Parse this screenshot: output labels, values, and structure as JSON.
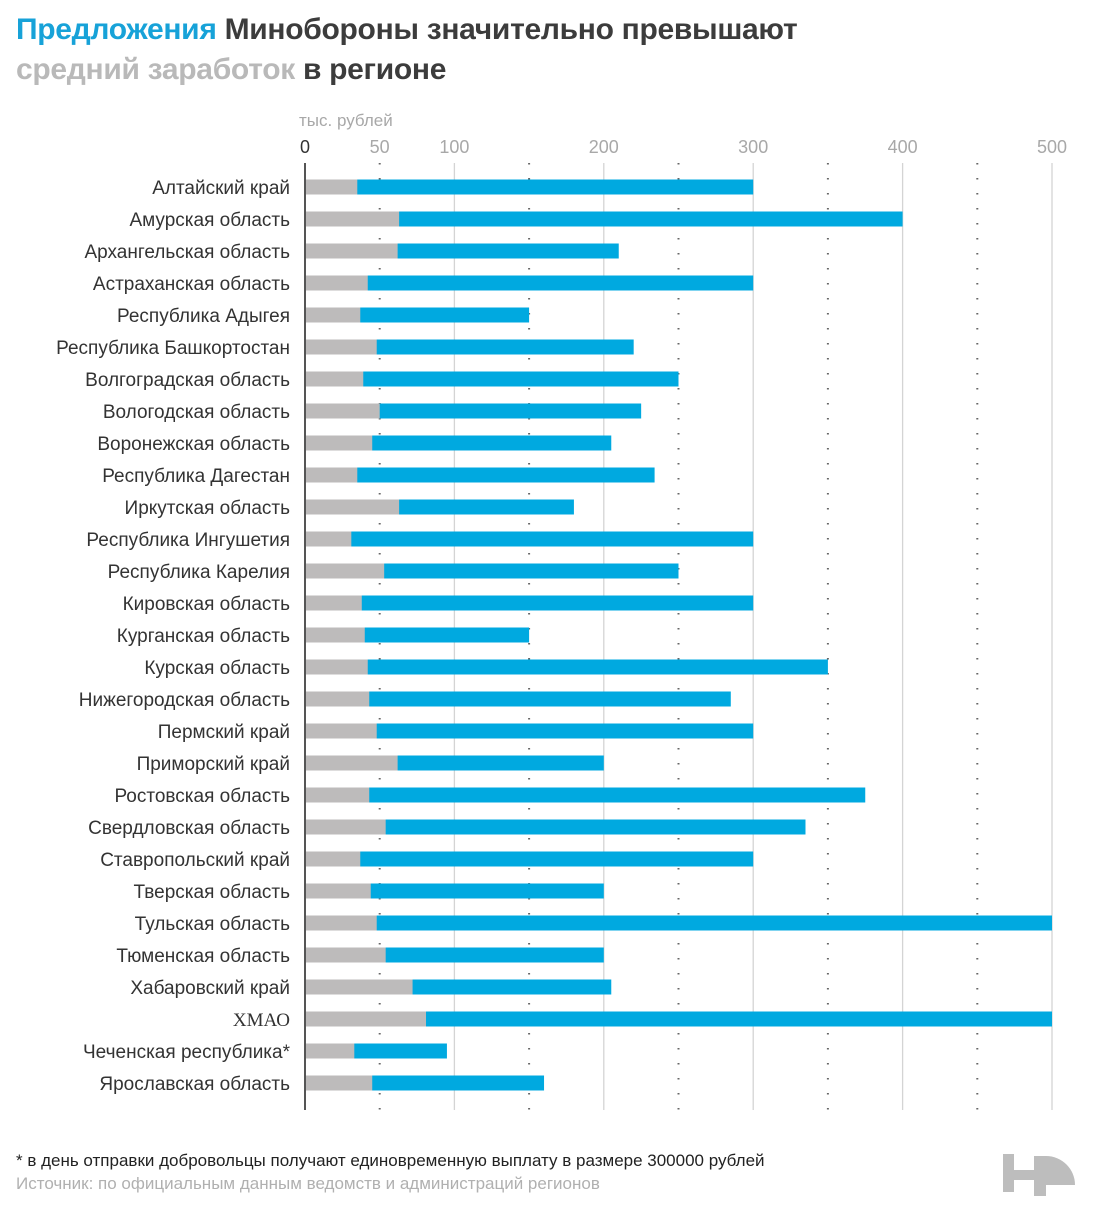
{
  "title": {
    "part1": "Предложения",
    "part2": " Минобороны значительно превышают",
    "part3": "средний заработок",
    "part4": " в регионе"
  },
  "colors": {
    "offer": "#00a9e0",
    "average": "#bdbbbb",
    "accent_title": "#17a2d8"
  },
  "chart_data": {
    "type": "bar",
    "orientation": "horizontal",
    "title": "Предложения Минобороны значительно превышают средний заработок в регионе",
    "xlabel": "тыс. рублей",
    "ylabel": "",
    "xlim": [
      0,
      500
    ],
    "xticks": [
      0,
      50,
      100,
      200,
      300,
      400,
      500
    ],
    "solid_gridlines": [
      100,
      200,
      300,
      400,
      500
    ],
    "dotted_gridlines": [
      50,
      150,
      250,
      350,
      450
    ],
    "categories": [
      "Алтайский край",
      "Амурская область",
      "Архангельская область",
      "Астраханская область",
      "Республика Адыгея",
      "Республика Башкортостан",
      "Волгоградская область",
      "Вологодская область",
      "Воронежская область",
      "Республика Дагестан",
      "Иркутская область",
      "Республика Ингушетия",
      "Республика Карелия",
      "Кировская область",
      "Курганская область",
      "Курская область",
      "Нижегородская область",
      "Пермский край",
      "Приморский край",
      "Ростовская область",
      "Свердловская область",
      "Ставропольский край",
      "Тверская область",
      "Тульская область",
      "Тюменская область",
      "Хабаровский край",
      "ХМАО",
      "Чеченская республика*",
      "Ярославская область"
    ],
    "series": [
      {
        "name": "Предложения Минобороны",
        "color": "#00a9e0",
        "values": [
          300,
          400,
          210,
          300,
          150,
          220,
          250,
          225,
          205,
          234,
          180,
          300,
          250,
          300,
          150,
          350,
          285,
          300,
          200,
          375,
          335,
          300,
          200,
          500,
          200,
          205,
          500,
          95,
          160
        ]
      },
      {
        "name": "Средний заработок",
        "color": "#bdbbbb",
        "values": [
          35,
          63,
          62,
          42,
          37,
          48,
          39,
          50,
          45,
          35,
          63,
          31,
          53,
          38,
          40,
          42,
          43,
          48,
          62,
          43,
          54,
          37,
          44,
          48,
          54,
          72,
          81,
          33,
          45
        ]
      }
    ],
    "legend": "none"
  },
  "footer": {
    "note": "* в день отправки добровольцы получают единовременную выплату в размере  300000 рублей",
    "source": "Источник: по официальным данным ведомств и администраций регионов"
  },
  "logo": "novaya-gazeta-logo"
}
